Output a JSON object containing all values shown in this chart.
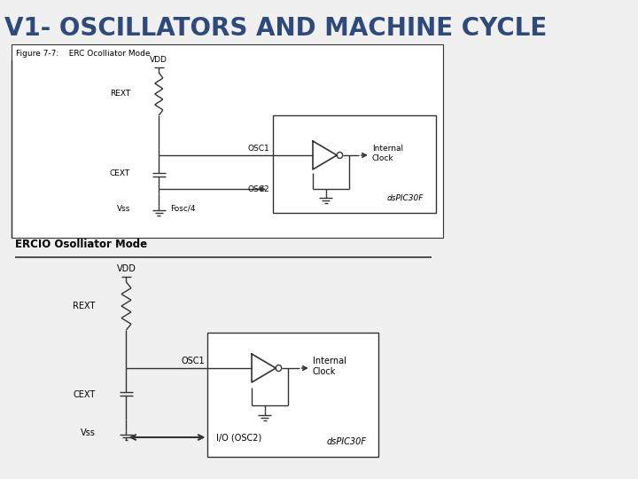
{
  "title": "V1- OSCILLATORS AND MACHINE CYCLE",
  "title_color": "#2E4A7A",
  "bg_color": "#F0F0F0",
  "diagram1_label": "Figure 7-7:    ERC Ocolliator Mode",
  "diagram2_label": "ERCIO Osolliator Mode"
}
